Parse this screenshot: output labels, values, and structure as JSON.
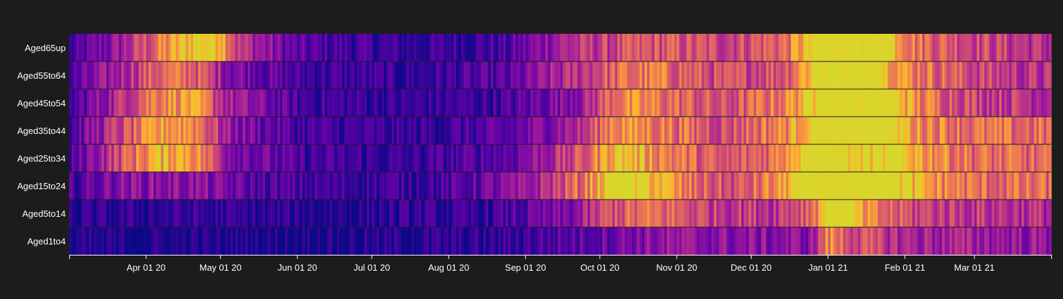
{
  "chart_data": {
    "type": "heatmap",
    "title": "",
    "xlabel": "",
    "ylabel": "",
    "x_range": [
      "2020-03-01",
      "2021-03-31"
    ],
    "row_labels": [
      "Aged65up",
      "Aged55to64",
      "Aged45to54",
      "Aged35to44",
      "Aged25to34",
      "Aged15to24",
      "Aged5to14",
      "Aged1to4"
    ],
    "x_ticks": [
      {
        "date": "2020-04-01",
        "label": "Apr 01 20"
      },
      {
        "date": "2020-05-01",
        "label": "May 01 20"
      },
      {
        "date": "2020-06-01",
        "label": "Jun 01 20"
      },
      {
        "date": "2020-07-01",
        "label": "Jul 01 20"
      },
      {
        "date": "2020-08-01",
        "label": "Aug 01 20"
      },
      {
        "date": "2020-09-01",
        "label": "Sep 01 20"
      },
      {
        "date": "2020-10-01",
        "label": "Oct 01 20"
      },
      {
        "date": "2020-11-01",
        "label": "Nov 01 20"
      },
      {
        "date": "2020-12-01",
        "label": "Dec 01 20"
      },
      {
        "date": "2021-01-01",
        "label": "Jan 01 21"
      },
      {
        "date": "2021-02-01",
        "label": "Feb 01 21"
      },
      {
        "date": "2021-03-01",
        "label": "Mar 01 21"
      }
    ],
    "value_scale": [
      0,
      1
    ],
    "colormap": [
      "#0d0887",
      "#5c01a6",
      "#9c179e",
      "#cc4778",
      "#ed7953",
      "#fdb42f",
      "#d6d82a"
    ],
    "row_profiles": [
      {
        "name": "Aged65up",
        "points": [
          [
            "2020-03-01",
            0.08
          ],
          [
            "2020-03-20",
            0.3
          ],
          [
            "2020-04-10",
            0.72
          ],
          [
            "2020-04-22",
            0.98
          ],
          [
            "2020-05-01",
            0.95
          ],
          [
            "2020-05-08",
            0.45
          ],
          [
            "2020-06-01",
            0.15
          ],
          [
            "2020-07-15",
            0.08
          ],
          [
            "2020-08-25",
            0.12
          ],
          [
            "2020-09-15",
            0.38
          ],
          [
            "2020-10-05",
            0.48
          ],
          [
            "2020-10-25",
            0.55
          ],
          [
            "2020-11-20",
            0.5
          ],
          [
            "2020-12-15",
            0.62
          ],
          [
            "2020-12-28",
            1.0
          ],
          [
            "2021-01-25",
            1.0
          ],
          [
            "2021-02-05",
            0.65
          ],
          [
            "2021-03-01",
            0.52
          ],
          [
            "2021-03-31",
            0.4
          ]
        ]
      },
      {
        "name": "Aged55to64",
        "points": [
          [
            "2020-03-01",
            0.12
          ],
          [
            "2020-03-20",
            0.35
          ],
          [
            "2020-04-05",
            0.6
          ],
          [
            "2020-04-20",
            0.62
          ],
          [
            "2020-05-05",
            0.28
          ],
          [
            "2020-06-01",
            0.12
          ],
          [
            "2020-07-15",
            0.08
          ],
          [
            "2020-08-25",
            0.15
          ],
          [
            "2020-09-20",
            0.42
          ],
          [
            "2020-10-10",
            0.62
          ],
          [
            "2020-10-25",
            0.65
          ],
          [
            "2020-11-20",
            0.48
          ],
          [
            "2020-12-15",
            0.58
          ],
          [
            "2020-12-28",
            1.0
          ],
          [
            "2021-01-22",
            1.0
          ],
          [
            "2021-02-01",
            0.72
          ],
          [
            "2021-03-01",
            0.5
          ],
          [
            "2021-03-31",
            0.4
          ]
        ]
      },
      {
        "name": "Aged45to54",
        "points": [
          [
            "2020-03-01",
            0.1
          ],
          [
            "2020-03-20",
            0.4
          ],
          [
            "2020-04-05",
            0.72
          ],
          [
            "2020-04-18",
            0.8
          ],
          [
            "2020-05-05",
            0.35
          ],
          [
            "2020-06-01",
            0.12
          ],
          [
            "2020-07-15",
            0.08
          ],
          [
            "2020-08-25",
            0.12
          ],
          [
            "2020-09-25",
            0.35
          ],
          [
            "2020-10-08",
            0.7
          ],
          [
            "2020-10-25",
            0.65
          ],
          [
            "2020-11-20",
            0.5
          ],
          [
            "2020-12-15",
            0.7
          ],
          [
            "2020-12-28",
            1.0
          ],
          [
            "2021-01-28",
            1.0
          ],
          [
            "2021-02-05",
            0.7
          ],
          [
            "2021-03-01",
            0.5
          ],
          [
            "2021-03-31",
            0.42
          ]
        ]
      },
      {
        "name": "Aged35to44",
        "points": [
          [
            "2020-03-01",
            0.12
          ],
          [
            "2020-03-20",
            0.45
          ],
          [
            "2020-04-08",
            0.78
          ],
          [
            "2020-04-20",
            0.75
          ],
          [
            "2020-05-05",
            0.3
          ],
          [
            "2020-06-01",
            0.12
          ],
          [
            "2020-07-15",
            0.08
          ],
          [
            "2020-08-25",
            0.15
          ],
          [
            "2020-09-25",
            0.42
          ],
          [
            "2020-10-06",
            0.75
          ],
          [
            "2020-10-25",
            0.68
          ],
          [
            "2020-11-20",
            0.52
          ],
          [
            "2020-12-15",
            0.72
          ],
          [
            "2020-12-26",
            1.0
          ],
          [
            "2021-01-28",
            1.0
          ],
          [
            "2021-02-05",
            0.75
          ],
          [
            "2021-03-01",
            0.62
          ],
          [
            "2021-03-31",
            0.6
          ]
        ]
      },
      {
        "name": "Aged25to34",
        "points": [
          [
            "2020-03-01",
            0.1
          ],
          [
            "2020-03-15",
            0.4
          ],
          [
            "2020-04-05",
            0.82
          ],
          [
            "2020-04-18",
            0.85
          ],
          [
            "2020-05-05",
            0.3
          ],
          [
            "2020-06-01",
            0.12
          ],
          [
            "2020-07-15",
            0.08
          ],
          [
            "2020-08-25",
            0.18
          ],
          [
            "2020-09-25",
            0.55
          ],
          [
            "2020-10-08",
            0.95
          ],
          [
            "2020-10-25",
            0.72
          ],
          [
            "2020-11-20",
            0.5
          ],
          [
            "2020-12-10",
            0.65
          ],
          [
            "2020-12-22",
            1.0
          ],
          [
            "2021-01-30",
            0.95
          ],
          [
            "2021-02-10",
            0.78
          ],
          [
            "2021-03-01",
            0.62
          ],
          [
            "2021-03-31",
            0.58
          ]
        ]
      },
      {
        "name": "Aged15to24",
        "points": [
          [
            "2020-03-01",
            0.12
          ],
          [
            "2020-03-20",
            0.28
          ],
          [
            "2020-04-20",
            0.3
          ],
          [
            "2020-05-15",
            0.15
          ],
          [
            "2020-06-15",
            0.1
          ],
          [
            "2020-08-01",
            0.12
          ],
          [
            "2020-09-01",
            0.3
          ],
          [
            "2020-09-25",
            0.65
          ],
          [
            "2020-10-05",
            1.0
          ],
          [
            "2020-10-20",
            0.95
          ],
          [
            "2020-11-05",
            0.62
          ],
          [
            "2020-11-25",
            0.5
          ],
          [
            "2020-12-12",
            0.72
          ],
          [
            "2020-12-20",
            1.0
          ],
          [
            "2021-01-28",
            1.0
          ],
          [
            "2021-02-10",
            0.75
          ],
          [
            "2021-03-01",
            0.62
          ],
          [
            "2021-03-31",
            0.6
          ]
        ]
      },
      {
        "name": "Aged5to14",
        "points": [
          [
            "2020-03-01",
            0.05
          ],
          [
            "2020-04-15",
            0.08
          ],
          [
            "2020-06-01",
            0.05
          ],
          [
            "2020-08-15",
            0.08
          ],
          [
            "2020-09-20",
            0.25
          ],
          [
            "2020-10-05",
            0.55
          ],
          [
            "2020-10-25",
            0.62
          ],
          [
            "2020-11-15",
            0.48
          ],
          [
            "2020-12-10",
            0.45
          ],
          [
            "2020-12-25",
            0.62
          ],
          [
            "2021-01-01",
            1.0
          ],
          [
            "2021-01-08",
            1.0
          ],
          [
            "2021-01-18",
            0.65
          ],
          [
            "2021-02-05",
            0.5
          ],
          [
            "2021-03-01",
            0.45
          ],
          [
            "2021-03-31",
            0.4
          ]
        ]
      },
      {
        "name": "Aged1to4",
        "points": [
          [
            "2020-03-01",
            0.03
          ],
          [
            "2020-06-01",
            0.03
          ],
          [
            "2020-08-15",
            0.06
          ],
          [
            "2020-09-25",
            0.18
          ],
          [
            "2020-10-25",
            0.3
          ],
          [
            "2020-11-25",
            0.28
          ],
          [
            "2020-12-25",
            0.28
          ],
          [
            "2021-01-01",
            0.7
          ],
          [
            "2021-01-10",
            0.55
          ],
          [
            "2021-02-01",
            0.38
          ],
          [
            "2021-03-01",
            0.35
          ],
          [
            "2021-03-31",
            0.3
          ]
        ]
      }
    ]
  }
}
